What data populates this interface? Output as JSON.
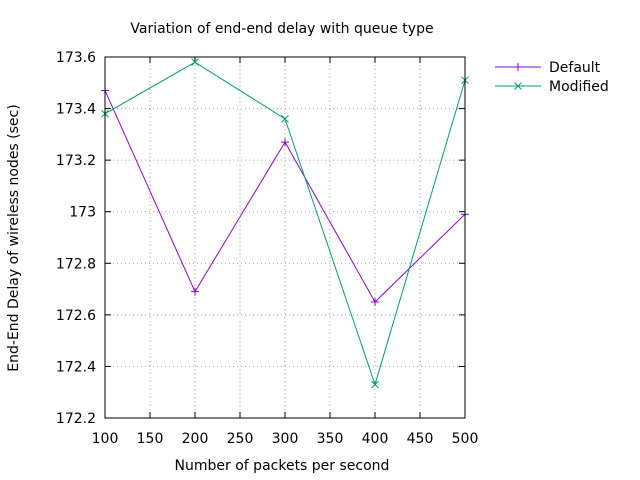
{
  "chart_data": {
    "type": "line",
    "title": "Variation of end-end delay with queue type",
    "xlabel": "Number of packets per second",
    "ylabel": "End-End Delay of wireless nodes (sec)",
    "xlim": [
      100,
      500
    ],
    "ylim": [
      172.2,
      173.6
    ],
    "xticks": [
      100,
      150,
      200,
      250,
      300,
      350,
      400,
      450,
      500
    ],
    "xtick_labels": [
      "100",
      "150",
      "200",
      "250",
      "300",
      "350",
      "400",
      "450",
      "500"
    ],
    "yticks": [
      172.2,
      172.4,
      172.6,
      172.8,
      173.0,
      173.2,
      173.4,
      173.6
    ],
    "ytick_labels": [
      "172.2",
      "172.4",
      "172.6",
      "172.8",
      "173",
      "173.2",
      "173.4",
      "173.6"
    ],
    "grid": true,
    "legend_position": "outside-top-right",
    "x": [
      100,
      200,
      300,
      400,
      500
    ],
    "series": [
      {
        "name": "Default",
        "marker": "plus",
        "color": "#9400d3",
        "values": [
          173.47,
          172.69,
          173.27,
          172.65,
          172.99
        ]
      },
      {
        "name": "Modified",
        "marker": "cross",
        "color": "#009e73",
        "values": [
          173.38,
          173.58,
          173.36,
          172.33,
          173.51
        ]
      }
    ]
  }
}
